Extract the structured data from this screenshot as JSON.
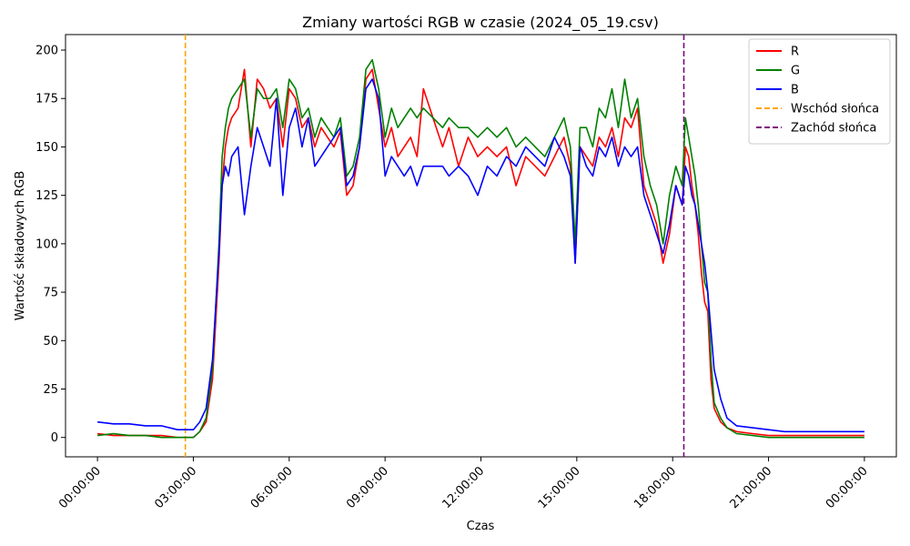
{
  "chart_data": {
    "type": "line",
    "title": "Zmiany wartości RGB w czasie (2024_05_19.csv)",
    "xlabel": "Czas",
    "ylabel": "Wartość składowych RGB",
    "x_unit": "hours",
    "xlim": [
      -1.0,
      25.0
    ],
    "ylim": [
      -10,
      208
    ],
    "x_ticks": [
      {
        "value": 0,
        "label": "00:00:00"
      },
      {
        "value": 3,
        "label": "03:00:00"
      },
      {
        "value": 6,
        "label": "06:00:00"
      },
      {
        "value": 9,
        "label": "09:00:00"
      },
      {
        "value": 12,
        "label": "12:00:00"
      },
      {
        "value": 15,
        "label": "15:00:00"
      },
      {
        "value": 18,
        "label": "18:00:00"
      },
      {
        "value": 21,
        "label": "21:00:00"
      },
      {
        "value": 24,
        "label": "00:00:00"
      }
    ],
    "y_ticks": [
      0,
      25,
      50,
      75,
      100,
      125,
      150,
      175,
      200
    ],
    "legend_position": "top-right",
    "grid": false,
    "series": [
      {
        "name": "R",
        "color": "#ff0000",
        "x": [
          0,
          0.5,
          1,
          1.5,
          2,
          2.5,
          3,
          3.2,
          3.4,
          3.6,
          3.8,
          3.9,
          4.0,
          4.1,
          4.2,
          4.4,
          4.6,
          4.8,
          5.0,
          5.2,
          5.4,
          5.6,
          5.8,
          6.0,
          6.2,
          6.4,
          6.6,
          6.8,
          7.0,
          7.2,
          7.4,
          7.6,
          7.8,
          8.0,
          8.2,
          8.4,
          8.6,
          8.8,
          9.0,
          9.2,
          9.4,
          9.6,
          9.8,
          10.0,
          10.2,
          10.5,
          10.8,
          11.0,
          11.3,
          11.6,
          11.9,
          12.2,
          12.5,
          12.8,
          13.1,
          13.4,
          13.7,
          14.0,
          14.3,
          14.6,
          14.8,
          14.95,
          15.1,
          15.3,
          15.5,
          15.7,
          15.9,
          16.1,
          16.3,
          16.5,
          16.7,
          16.9,
          17.1,
          17.3,
          17.5,
          17.7,
          17.9,
          18.1,
          18.3,
          18.4,
          18.5,
          18.6,
          18.7,
          18.8,
          18.9,
          19.0,
          19.1,
          19.2,
          19.3,
          19.5,
          19.7,
          20.0,
          20.5,
          21,
          21.5,
          22,
          22.5,
          23,
          23.5,
          24
        ],
        "y": [
          2,
          1,
          1,
          1,
          1,
          0,
          0,
          3,
          8,
          30,
          90,
          130,
          150,
          160,
          165,
          170,
          190,
          150,
          185,
          180,
          170,
          175,
          150,
          180,
          175,
          160,
          165,
          150,
          160,
          155,
          150,
          158,
          125,
          130,
          150,
          185,
          190,
          170,
          150,
          160,
          145,
          150,
          155,
          145,
          180,
          165,
          150,
          160,
          140,
          155,
          145,
          150,
          145,
          150,
          130,
          145,
          140,
          135,
          145,
          155,
          140,
          90,
          150,
          145,
          140,
          155,
          150,
          160,
          145,
          165,
          160,
          170,
          130,
          120,
          110,
          90,
          105,
          130,
          120,
          150,
          145,
          130,
          120,
          105,
          85,
          70,
          65,
          30,
          15,
          8,
          5,
          3,
          2,
          1,
          1,
          1,
          1,
          1,
          1,
          1
        ]
      },
      {
        "name": "G",
        "color": "#008000",
        "x": [
          0,
          0.5,
          1,
          1.5,
          2,
          2.5,
          3,
          3.2,
          3.4,
          3.6,
          3.8,
          3.9,
          4.0,
          4.1,
          4.2,
          4.4,
          4.6,
          4.8,
          5.0,
          5.2,
          5.4,
          5.6,
          5.8,
          6.0,
          6.2,
          6.4,
          6.6,
          6.8,
          7.0,
          7.2,
          7.4,
          7.6,
          7.8,
          8.0,
          8.2,
          8.4,
          8.6,
          8.8,
          9.0,
          9.2,
          9.4,
          9.6,
          9.8,
          10.0,
          10.2,
          10.5,
          10.8,
          11.0,
          11.3,
          11.6,
          11.9,
          12.2,
          12.5,
          12.8,
          13.1,
          13.4,
          13.7,
          14.0,
          14.3,
          14.6,
          14.8,
          14.95,
          15.1,
          15.3,
          15.5,
          15.7,
          15.9,
          16.1,
          16.3,
          16.5,
          16.7,
          16.9,
          17.1,
          17.3,
          17.5,
          17.7,
          17.9,
          18.1,
          18.3,
          18.4,
          18.5,
          18.6,
          18.7,
          18.8,
          18.9,
          19.0,
          19.1,
          19.2,
          19.3,
          19.5,
          19.7,
          20.0,
          20.5,
          21,
          21.5,
          22,
          22.5,
          23,
          23.5,
          24
        ],
        "y": [
          1,
          2,
          1,
          1,
          0,
          0,
          0,
          3,
          10,
          35,
          100,
          145,
          160,
          170,
          175,
          180,
          185,
          155,
          180,
          175,
          175,
          180,
          160,
          185,
          180,
          165,
          170,
          155,
          165,
          160,
          155,
          165,
          135,
          140,
          155,
          190,
          195,
          180,
          155,
          170,
          160,
          165,
          170,
          165,
          170,
          165,
          160,
          165,
          160,
          160,
          155,
          160,
          155,
          160,
          150,
          155,
          150,
          145,
          155,
          165,
          150,
          100,
          160,
          160,
          150,
          170,
          165,
          180,
          160,
          185,
          165,
          175,
          145,
          130,
          120,
          100,
          125,
          140,
          130,
          165,
          155,
          145,
          135,
          120,
          100,
          80,
          75,
          40,
          18,
          10,
          5,
          2,
          1,
          0,
          0,
          0,
          0,
          0,
          0,
          0
        ]
      },
      {
        "name": "B",
        "color": "#0000ff",
        "x": [
          0,
          0.5,
          1,
          1.5,
          2,
          2.5,
          3,
          3.2,
          3.4,
          3.6,
          3.8,
          3.9,
          4.0,
          4.1,
          4.2,
          4.4,
          4.6,
          4.8,
          5.0,
          5.2,
          5.4,
          5.6,
          5.8,
          6.0,
          6.2,
          6.4,
          6.6,
          6.8,
          7.0,
          7.2,
          7.4,
          7.6,
          7.8,
          8.0,
          8.2,
          8.4,
          8.6,
          8.8,
          9.0,
          9.2,
          9.4,
          9.6,
          9.8,
          10.0,
          10.2,
          10.5,
          10.8,
          11.0,
          11.3,
          11.6,
          11.9,
          12.2,
          12.5,
          12.8,
          13.1,
          13.4,
          13.7,
          14.0,
          14.3,
          14.6,
          14.8,
          14.95,
          15.1,
          15.3,
          15.5,
          15.7,
          15.9,
          16.1,
          16.3,
          16.5,
          16.7,
          16.9,
          17.1,
          17.3,
          17.5,
          17.7,
          17.9,
          18.1,
          18.3,
          18.4,
          18.5,
          18.6,
          18.7,
          18.8,
          18.9,
          19.0,
          19.1,
          19.2,
          19.3,
          19.5,
          19.7,
          20.0,
          20.5,
          21,
          21.5,
          22,
          22.5,
          23,
          23.5,
          24
        ],
        "y": [
          8,
          7,
          7,
          6,
          6,
          4,
          4,
          8,
          15,
          40,
          95,
          130,
          140,
          135,
          145,
          150,
          115,
          140,
          160,
          150,
          140,
          175,
          125,
          160,
          170,
          150,
          165,
          140,
          145,
          150,
          155,
          160,
          130,
          135,
          150,
          180,
          185,
          175,
          135,
          145,
          140,
          135,
          140,
          130,
          140,
          140,
          140,
          135,
          140,
          135,
          125,
          140,
          135,
          145,
          140,
          150,
          145,
          140,
          155,
          145,
          135,
          90,
          150,
          140,
          135,
          150,
          145,
          155,
          140,
          150,
          145,
          150,
          125,
          115,
          105,
          95,
          110,
          130,
          120,
          140,
          135,
          125,
          120,
          110,
          100,
          90,
          75,
          55,
          35,
          20,
          10,
          6,
          5,
          4,
          3,
          3,
          3,
          3,
          3,
          3
        ]
      }
    ],
    "vlines": [
      {
        "name": "Wschód słońca",
        "x": 2.75,
        "color": "#ffa500"
      },
      {
        "name": "Zachód słońca",
        "x": 18.35,
        "color": "#800080"
      }
    ]
  }
}
